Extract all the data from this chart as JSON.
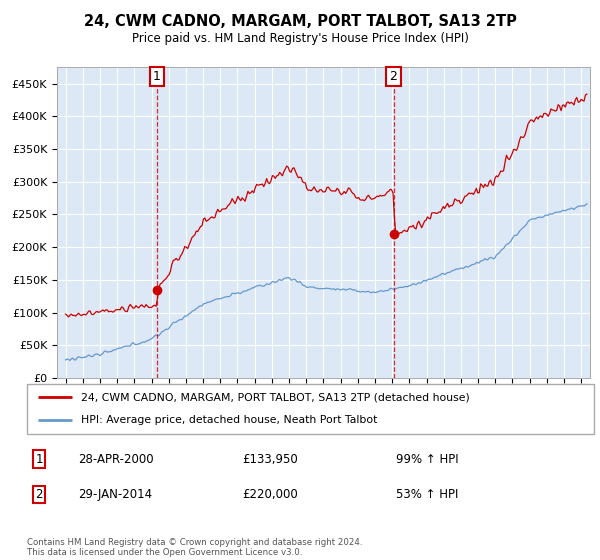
{
  "title": "24, CWM CADNO, MARGAM, PORT TALBOT, SA13 2TP",
  "subtitle": "Price paid vs. HM Land Registry's House Price Index (HPI)",
  "ylim": [
    0,
    475000
  ],
  "yticks": [
    0,
    50000,
    100000,
    150000,
    200000,
    250000,
    300000,
    350000,
    400000,
    450000
  ],
  "ytick_labels": [
    "£0",
    "£50K",
    "£100K",
    "£150K",
    "£200K",
    "£250K",
    "£300K",
    "£350K",
    "£400K",
    "£450K"
  ],
  "xlim_start": 1994.5,
  "xlim_end": 2025.5,
  "sale1_date": 2000.32,
  "sale1_price": 133950,
  "sale1_label": "1",
  "sale2_date": 2014.08,
  "sale2_price": 220000,
  "sale2_label": "2",
  "legend_line1": "24, CWM CADNO, MARGAM, PORT TALBOT, SA13 2TP (detached house)",
  "legend_line2": "HPI: Average price, detached house, Neath Port Talbot",
  "table_row1_num": "1",
  "table_row1_date": "28-APR-2000",
  "table_row1_price": "£133,950",
  "table_row1_hpi": "99% ↑ HPI",
  "table_row2_num": "2",
  "table_row2_date": "29-JAN-2014",
  "table_row2_price": "£220,000",
  "table_row2_hpi": "53% ↑ HPI",
  "footer": "Contains HM Land Registry data © Crown copyright and database right 2024.\nThis data is licensed under the Open Government Licence v3.0.",
  "red_color": "#cc0000",
  "blue_color": "#6699cc",
  "background_color": "#dce8f5",
  "grid_color": "#ffffff"
}
